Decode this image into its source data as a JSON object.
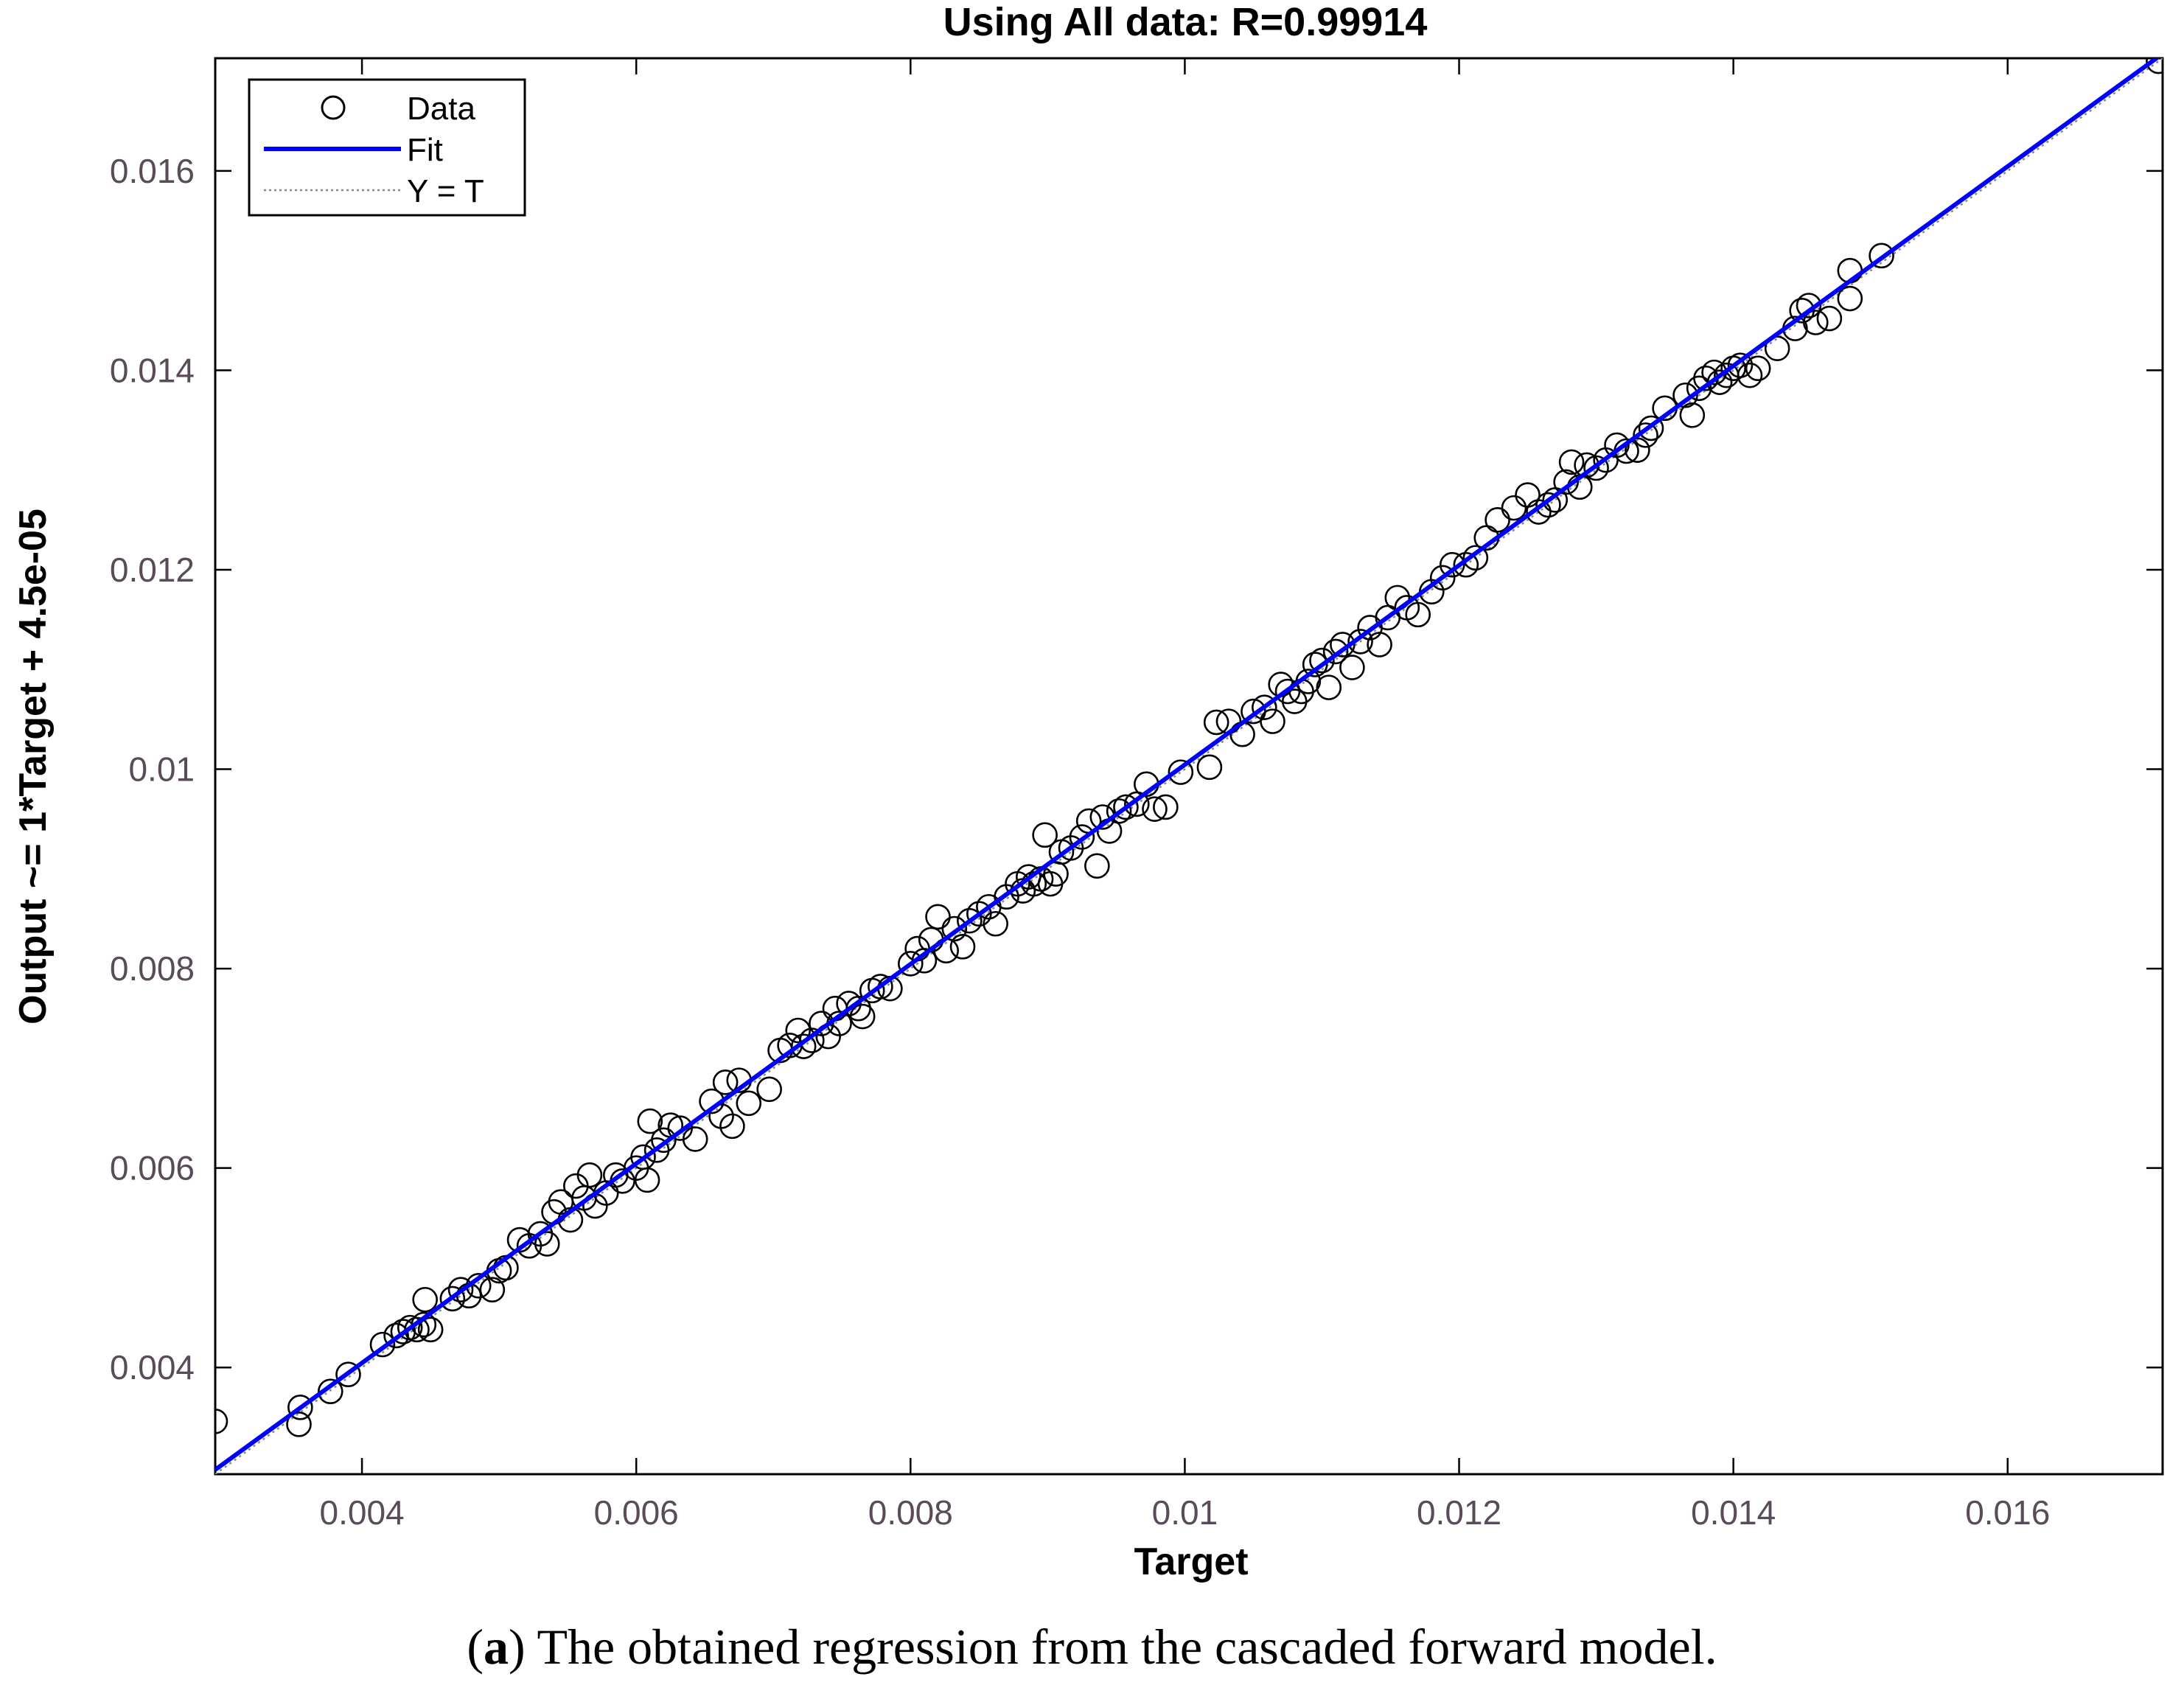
{
  "figure": {
    "caption_letter": "a",
    "caption_text": "The obtained regression from the cascaded forward model."
  },
  "chart_data": {
    "type": "scatter",
    "title": "Using All data: R=0.99914",
    "xlabel": "Target",
    "ylabel": "Output ~= 1*Target + 4.5e-05",
    "xlim": [
      0.00293,
      0.01713
    ],
    "ylim": [
      0.00293,
      0.01713
    ],
    "xticks": [
      0.004,
      0.006,
      0.008,
      0.01,
      0.012,
      0.014,
      0.016
    ],
    "xtick_labels": [
      "0.004",
      "0.006",
      "0.008",
      "0.01",
      "0.012",
      "0.014",
      "0.016"
    ],
    "yticks": [
      0.004,
      0.006,
      0.008,
      0.01,
      0.012,
      0.014,
      0.016
    ],
    "ytick_labels": [
      "0.004",
      "0.006",
      "0.008",
      "0.01",
      "0.012",
      "0.014",
      "0.016"
    ],
    "grid": false,
    "legend_position": "top-left",
    "legend": [
      "Data",
      "Fit",
      "Y = T"
    ],
    "fit": {
      "slope": 1,
      "intercept": 4.5e-05,
      "color": "#0000ff"
    },
    "identity_line": {
      "color": "#888888",
      "style": "dotted"
    },
    "marker_color": "#000000",
    "series": [
      {
        "name": "Data",
        "marker": "circle",
        "points": [
          [
            0.00293,
            0.00346
          ],
          [
            0.00354,
            0.00343
          ],
          [
            0.00355,
            0.0036
          ],
          [
            0.00377,
            0.00376
          ],
          [
            0.0039,
            0.00393
          ],
          [
            0.00415,
            0.00423
          ],
          [
            0.00425,
            0.00432
          ],
          [
            0.0043,
            0.00436
          ],
          [
            0.00435,
            0.0044
          ],
          [
            0.0044,
            0.00438
          ],
          [
            0.00445,
            0.00443
          ],
          [
            0.0045,
            0.00438
          ],
          [
            0.00446,
            0.00468
          ],
          [
            0.00466,
            0.00469
          ],
          [
            0.00472,
            0.00478
          ],
          [
            0.00478,
            0.00472
          ],
          [
            0.00485,
            0.00482
          ],
          [
            0.00495,
            0.00478
          ],
          [
            0.005,
            0.00497
          ],
          [
            0.00505,
            0.005
          ],
          [
            0.00515,
            0.00528
          ],
          [
            0.00522,
            0.00522
          ],
          [
            0.0053,
            0.00534
          ],
          [
            0.00535,
            0.00524
          ],
          [
            0.0054,
            0.00556
          ],
          [
            0.00545,
            0.00566
          ],
          [
            0.00552,
            0.00548
          ],
          [
            0.00556,
            0.00582
          ],
          [
            0.00562,
            0.0057
          ],
          [
            0.00566,
            0.00593
          ],
          [
            0.0057,
            0.00562
          ],
          [
            0.00578,
            0.00575
          ],
          [
            0.00585,
            0.00593
          ],
          [
            0.0059,
            0.00587
          ],
          [
            0.006,
            0.006
          ],
          [
            0.00605,
            0.00611
          ],
          [
            0.00608,
            0.00588
          ],
          [
            0.0061,
            0.00647
          ],
          [
            0.00615,
            0.00618
          ],
          [
            0.0062,
            0.00628
          ],
          [
            0.00625,
            0.00643
          ],
          [
            0.00632,
            0.0064
          ],
          [
            0.00643,
            0.00629
          ],
          [
            0.00655,
            0.00667
          ],
          [
            0.00662,
            0.00652
          ],
          [
            0.00665,
            0.00686
          ],
          [
            0.0067,
            0.00642
          ],
          [
            0.00675,
            0.00688
          ],
          [
            0.00682,
            0.00665
          ],
          [
            0.00697,
            0.00679
          ],
          [
            0.00705,
            0.00718
          ],
          [
            0.00712,
            0.00723
          ],
          [
            0.00718,
            0.00738
          ],
          [
            0.00722,
            0.00722
          ],
          [
            0.00728,
            0.00728
          ],
          [
            0.00735,
            0.00745
          ],
          [
            0.0074,
            0.00732
          ],
          [
            0.00745,
            0.0076
          ],
          [
            0.00748,
            0.00745
          ],
          [
            0.00755,
            0.00765
          ],
          [
            0.00762,
            0.0076
          ],
          [
            0.00765,
            0.00752
          ],
          [
            0.00772,
            0.00778
          ],
          [
            0.00778,
            0.00782
          ],
          [
            0.00785,
            0.0078
          ],
          [
            0.008,
            0.00805
          ],
          [
            0.00805,
            0.0082
          ],
          [
            0.0081,
            0.00808
          ],
          [
            0.00815,
            0.00829
          ],
          [
            0.0082,
            0.00852
          ],
          [
            0.00826,
            0.00818
          ],
          [
            0.00832,
            0.0084
          ],
          [
            0.00838,
            0.00822
          ],
          [
            0.00843,
            0.00848
          ],
          [
            0.0085,
            0.00855
          ],
          [
            0.00857,
            0.00862
          ],
          [
            0.00862,
            0.00845
          ],
          [
            0.0087,
            0.00872
          ],
          [
            0.00878,
            0.00885
          ],
          [
            0.00882,
            0.00878
          ],
          [
            0.00886,
            0.00892
          ],
          [
            0.0089,
            0.00885
          ],
          [
            0.00895,
            0.0089
          ],
          [
            0.00898,
            0.00934
          ],
          [
            0.00902,
            0.00885
          ],
          [
            0.00906,
            0.00895
          ],
          [
            0.0091,
            0.00917
          ],
          [
            0.00917,
            0.00921
          ],
          [
            0.00925,
            0.00932
          ],
          [
            0.0093,
            0.00948
          ],
          [
            0.00936,
            0.00903
          ],
          [
            0.0094,
            0.00952
          ],
          [
            0.00945,
            0.00938
          ],
          [
            0.00952,
            0.00958
          ],
          [
            0.00957,
            0.00962
          ],
          [
            0.00965,
            0.00965
          ],
          [
            0.00972,
            0.00985
          ],
          [
            0.00978,
            0.0096
          ],
          [
            0.00986,
            0.00962
          ],
          [
            0.00997,
            0.00997
          ],
          [
            0.01018,
            0.01002
          ],
          [
            0.01023,
            0.01047
          ],
          [
            0.01032,
            0.01048
          ],
          [
            0.01042,
            0.01035
          ],
          [
            0.0105,
            0.01058
          ],
          [
            0.01058,
            0.01062
          ],
          [
            0.01064,
            0.01048
          ],
          [
            0.0107,
            0.01085
          ],
          [
            0.01075,
            0.01078
          ],
          [
            0.0108,
            0.01068
          ],
          [
            0.01085,
            0.01078
          ],
          [
            0.0109,
            0.01088
          ],
          [
            0.01095,
            0.01105
          ],
          [
            0.011,
            0.01109
          ],
          [
            0.01105,
            0.01082
          ],
          [
            0.0111,
            0.01118
          ],
          [
            0.01115,
            0.01125
          ],
          [
            0.01122,
            0.01102
          ],
          [
            0.01128,
            0.01128
          ],
          [
            0.01135,
            0.01142
          ],
          [
            0.01142,
            0.01125
          ],
          [
            0.01148,
            0.01152
          ],
          [
            0.01155,
            0.01172
          ],
          [
            0.01162,
            0.01162
          ],
          [
            0.0117,
            0.01155
          ],
          [
            0.0118,
            0.01178
          ],
          [
            0.01188,
            0.01192
          ],
          [
            0.01195,
            0.01205
          ],
          [
            0.01205,
            0.01205
          ],
          [
            0.01212,
            0.01212
          ],
          [
            0.0122,
            0.01232
          ],
          [
            0.01228,
            0.0125
          ],
          [
            0.0124,
            0.01262
          ],
          [
            0.0125,
            0.01275
          ],
          [
            0.01258,
            0.01258
          ],
          [
            0.01265,
            0.01265
          ],
          [
            0.0127,
            0.0127
          ],
          [
            0.01278,
            0.01288
          ],
          [
            0.01282,
            0.01308
          ],
          [
            0.01288,
            0.01283
          ],
          [
            0.01293,
            0.01305
          ],
          [
            0.013,
            0.01302
          ],
          [
            0.01307,
            0.0131
          ],
          [
            0.01315,
            0.01325
          ],
          [
            0.01322,
            0.01319
          ],
          [
            0.0133,
            0.0132
          ],
          [
            0.01336,
            0.01335
          ],
          [
            0.0134,
            0.01342
          ],
          [
            0.0135,
            0.01362
          ],
          [
            0.01365,
            0.01375
          ],
          [
            0.0137,
            0.01355
          ],
          [
            0.01375,
            0.01382
          ],
          [
            0.0138,
            0.01392
          ],
          [
            0.01386,
            0.01398
          ],
          [
            0.0139,
            0.01388
          ],
          [
            0.01395,
            0.01395
          ],
          [
            0.014,
            0.01402
          ],
          [
            0.01405,
            0.01405
          ],
          [
            0.01412,
            0.01395
          ],
          [
            0.01418,
            0.01402
          ],
          [
            0.01432,
            0.01422
          ],
          [
            0.01445,
            0.01442
          ],
          [
            0.0145,
            0.0146
          ],
          [
            0.01455,
            0.01465
          ],
          [
            0.0146,
            0.01448
          ],
          [
            0.0147,
            0.01452
          ],
          [
            0.01485,
            0.01472
          ],
          [
            0.01485,
            0.015
          ],
          [
            0.01508,
            0.01515
          ],
          [
            0.0171,
            0.0171
          ]
        ]
      }
    ]
  }
}
